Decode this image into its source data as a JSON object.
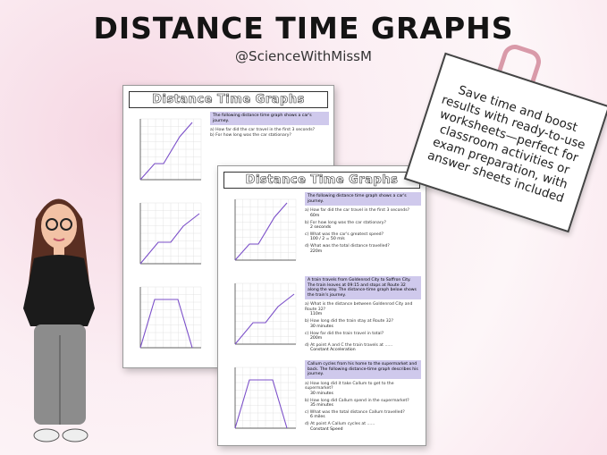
{
  "header": {
    "title": "DISTANCE TIME GRAPHS",
    "handle": "@ScienceWithMissM"
  },
  "note": {
    "lines": [
      "Save time and boost",
      "results with ready-to-use",
      "worksheets—perfect for",
      "classroom activities or",
      "exam preparation, with",
      "answer sheets included"
    ]
  },
  "back_sheet": {
    "title": "Distance Time Graphs",
    "intro": "The following distance time graph shows a car's journey.",
    "questions": [
      "a) How far did the car travel in the first 3 seconds?",
      "b) For how long was the car stationary?"
    ]
  },
  "front_sheet": {
    "title": "Distance Time Graphs",
    "sections": [
      {
        "intro": "The following distance time graph shows a car's journey.",
        "items": [
          {
            "q": "a) How far did the car travel in the first 3 seconds?",
            "a": "60m"
          },
          {
            "q": "b) For how long was the car stationary?",
            "a": "2 seconds"
          },
          {
            "q": "c) What was the car's greatest speed?",
            "a": "100 / 2 = 50 m/s"
          },
          {
            "q": "d) What was the total distance travelled?",
            "a": "220m"
          }
        ]
      },
      {
        "intro": "A train travels from Goldenrod City to Saffron City. The train leaves at 09:15 and stops at Route 32 along the way. The distance-time graph below shows the train's journey.",
        "items": [
          {
            "q": "a) What is the distance between Goldenrod City and Route 32?",
            "a": "110m"
          },
          {
            "q": "b) How long did the train stay at Route 32?",
            "a": "30 minutes"
          },
          {
            "q": "c) How far did the train travel in total?",
            "a": "200m"
          },
          {
            "q": "d) At point A and C the train travels at ......",
            "a": "Constant Acceleration"
          }
        ]
      },
      {
        "intro": "Callum cycles from his home to the supermarket and back. The following distance-time graph describes his journey.",
        "items": [
          {
            "q": "a) How long did it take Callum to get to the supermarket?",
            "a": "30 minutes"
          },
          {
            "q": "b) How long did Callum spend in the supermarket?",
            "a": "35 minutes"
          },
          {
            "q": "c) What was the total distance Callum travelled?",
            "a": "6 miles"
          },
          {
            "q": "d) At point A Callum cycles at ......",
            "a": "Constant Speed"
          }
        ]
      }
    ]
  }
}
